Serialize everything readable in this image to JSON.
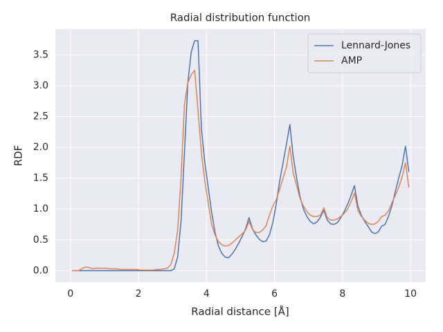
{
  "chart_data": {
    "type": "line",
    "title": "Radial distribution function",
    "xlabel": "Radial distance [Å]",
    "ylabel": "RDF",
    "x": [
      0.05,
      0.15,
      0.25,
      0.35,
      0.45,
      0.55,
      0.65,
      0.75,
      0.85,
      0.95,
      1.05,
      1.15,
      1.25,
      1.35,
      1.45,
      1.55,
      1.65,
      1.75,
      1.85,
      1.95,
      2.05,
      2.15,
      2.25,
      2.35,
      2.45,
      2.55,
      2.65,
      2.75,
      2.85,
      2.95,
      3.05,
      3.15,
      3.25,
      3.35,
      3.45,
      3.55,
      3.65,
      3.75,
      3.85,
      3.95,
      4.05,
      4.15,
      4.25,
      4.35,
      4.45,
      4.55,
      4.65,
      4.75,
      4.85,
      4.95,
      5.05,
      5.15,
      5.25,
      5.35,
      5.45,
      5.55,
      5.65,
      5.75,
      5.85,
      5.95,
      6.05,
      6.15,
      6.25,
      6.35,
      6.45,
      6.55,
      6.65,
      6.75,
      6.85,
      6.95,
      7.05,
      7.15,
      7.25,
      7.35,
      7.45,
      7.55,
      7.65,
      7.75,
      7.85,
      7.95,
      8.05,
      8.15,
      8.25,
      8.35,
      8.45,
      8.55,
      8.65,
      8.75,
      8.85,
      8.95,
      9.05,
      9.15,
      9.25,
      9.35,
      9.45,
      9.55,
      9.65,
      9.75,
      9.85,
      9.95
    ],
    "series": [
      {
        "name": "Lennard-Jones",
        "color": "#4c72b0",
        "values": [
          0,
          0,
          0,
          0,
          0,
          0,
          0,
          0,
          0,
          0,
          0,
          0,
          0,
          0,
          0,
          0,
          0,
          0,
          0,
          0,
          0,
          0,
          0,
          0,
          0,
          0,
          0,
          0,
          0,
          0,
          0.03,
          0.22,
          0.8,
          1.9,
          3.05,
          3.55,
          3.73,
          3.73,
          2.3,
          1.75,
          1.35,
          0.95,
          0.62,
          0.4,
          0.28,
          0.22,
          0.21,
          0.27,
          0.35,
          0.45,
          0.56,
          0.68,
          0.86,
          0.68,
          0.58,
          0.51,
          0.47,
          0.48,
          0.58,
          0.78,
          1.08,
          1.45,
          1.75,
          2.05,
          2.37,
          1.85,
          1.5,
          1.2,
          1.0,
          0.88,
          0.8,
          0.76,
          0.79,
          0.87,
          0.98,
          0.82,
          0.76,
          0.75,
          0.78,
          0.86,
          0.96,
          1.08,
          1.22,
          1.38,
          1.05,
          0.9,
          0.8,
          0.72,
          0.63,
          0.6,
          0.63,
          0.72,
          0.75,
          0.88,
          1.05,
          1.28,
          1.5,
          1.7,
          2.02,
          1.6
        ]
      },
      {
        "name": "AMP",
        "color": "#dd8452",
        "values": [
          0,
          0,
          0,
          0.04,
          0.06,
          0.05,
          0.03,
          0.04,
          0.04,
          0.04,
          0.04,
          0.03,
          0.03,
          0.03,
          0.02,
          0.02,
          0.02,
          0.02,
          0.02,
          0.02,
          0.01,
          0.01,
          0.01,
          0.01,
          0.01,
          0.02,
          0.02,
          0.03,
          0.04,
          0.1,
          0.28,
          0.65,
          1.5,
          2.7,
          3.05,
          3.18,
          3.25,
          2.6,
          1.9,
          1.45,
          1.1,
          0.75,
          0.58,
          0.47,
          0.42,
          0.4,
          0.41,
          0.45,
          0.5,
          0.55,
          0.6,
          0.66,
          0.8,
          0.67,
          0.62,
          0.62,
          0.66,
          0.73,
          0.9,
          1.05,
          1.15,
          1.32,
          1.5,
          1.68,
          2.02,
          1.58,
          1.38,
          1.17,
          1.05,
          0.96,
          0.9,
          0.88,
          0.88,
          0.9,
          1.02,
          0.86,
          0.82,
          0.82,
          0.84,
          0.88,
          0.93,
          1.0,
          1.12,
          1.26,
          0.98,
          0.88,
          0.82,
          0.77,
          0.75,
          0.76,
          0.8,
          0.88,
          0.9,
          0.97,
          1.1,
          1.22,
          1.35,
          1.52,
          1.75,
          1.35
        ]
      }
    ],
    "xlim": [
      -0.445,
      10.445
    ],
    "xticks": [
      0,
      2,
      4,
      6,
      8,
      10
    ],
    "ylim": [
      -0.187,
      3.92
    ],
    "yticks": [
      {
        "value": 0,
        "label": "0.0"
      },
      0.5,
      {
        "value": 1,
        "label": "1.0"
      },
      1.5,
      {
        "value": 2,
        "label": "2.0"
      },
      2.5,
      {
        "value": 3,
        "label": "3.0"
      },
      3.5
    ],
    "grid": true,
    "legend": "upper right"
  }
}
